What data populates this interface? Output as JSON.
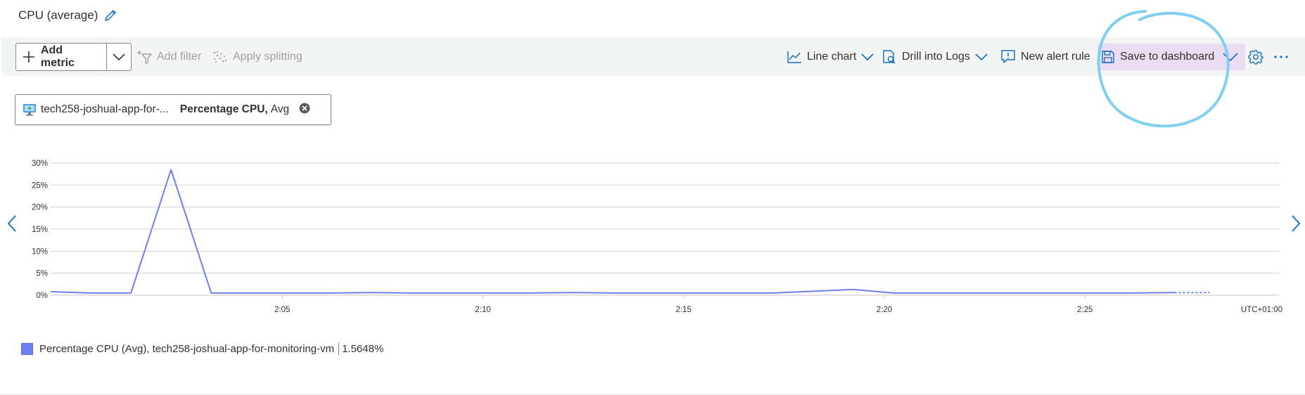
{
  "header": {
    "title": "CPU (average)"
  },
  "toolbar": {
    "add_metric": "Add metric",
    "add_filter": "Add filter",
    "apply_splitting": "Apply splitting",
    "line_chart": "Line chart",
    "drill_logs": "Drill into Logs",
    "new_alert": "New alert rule",
    "save_dashboard": "Save to dashboard"
  },
  "metric_pill": {
    "resource": "tech258-joshual-app-for-...",
    "metric": "Percentage CPU,",
    "aggregation": "Avg"
  },
  "legend": {
    "label": "Percentage CPU (Avg), tech258-joshual-app-for-monitoring-vm",
    "value": "1.5648%"
  },
  "colors": {
    "series": "#6e7ff0",
    "accent": "#0f6cbd",
    "highlight": "#eadcf3",
    "annotation": "#7fd0f0"
  },
  "chart_data": {
    "type": "line",
    "ylim": [
      0,
      30
    ],
    "y_ticks": [
      "0%",
      "5%",
      "10%",
      "15%",
      "20%",
      "25%",
      "30%"
    ],
    "x_ticks": [
      "2:05",
      "2:10",
      "2:15",
      "2:20",
      "2:25"
    ],
    "timezone": "UTC+01:00",
    "grid": true,
    "series": [
      {
        "name": "Percentage CPU (Avg)",
        "x": [
          "2:00",
          "2:01",
          "2:02",
          "2:03",
          "2:04",
          "2:05",
          "2:06",
          "2:07",
          "2:08",
          "2:09",
          "2:10",
          "2:11",
          "2:12",
          "2:13",
          "2:14",
          "2:15",
          "2:16",
          "2:17",
          "2:18",
          "2:19",
          "2:20",
          "2:21",
          "2:22",
          "2:23",
          "2:24",
          "2:25",
          "2:26",
          "2:27",
          "2:28"
        ],
        "values": [
          0.8,
          0.5,
          0.5,
          28.5,
          0.5,
          0.5,
          0.5,
          0.5,
          0.6,
          0.5,
          0.5,
          0.5,
          0.5,
          0.6,
          0.5,
          0.5,
          0.5,
          0.5,
          0.5,
          0.9,
          1.3,
          0.5,
          0.5,
          0.5,
          0.5,
          0.5,
          0.5,
          0.5,
          0.6
        ],
        "projected_end": 0.6
      }
    ]
  }
}
